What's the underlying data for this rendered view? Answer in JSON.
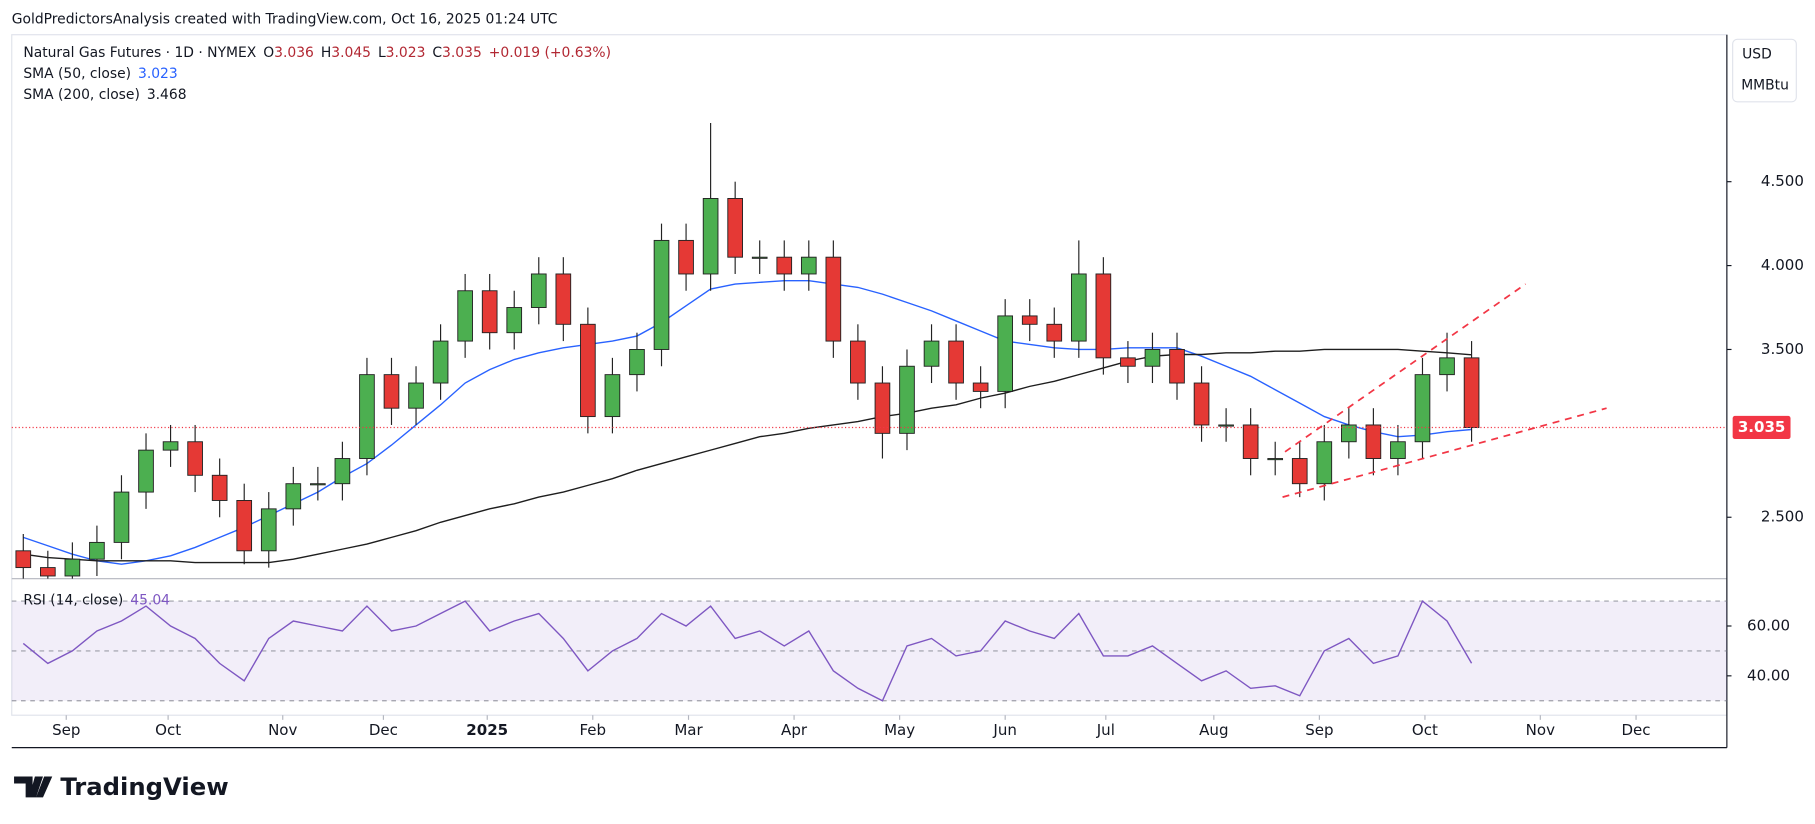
{
  "attribution": "GoldPredictorsAnalysis created with TradingView.com, Oct 16, 2025 01:24 UTC",
  "brand": "TradingView",
  "chart_data": {
    "type": "candlestick",
    "title": "Natural Gas Futures · 1D · NYMEX",
    "ohlc_header": {
      "o_label": "O",
      "o": "3.036",
      "h_label": "H",
      "h": "3.045",
      "l_label": "L",
      "l": "3.023",
      "c_label": "C",
      "c": "3.035",
      "change": "+0.019 (+0.63%)"
    },
    "currency": "USD",
    "unit": "MMBtu",
    "up_color": "#4caf50",
    "down_color": "#e53935",
    "open": [
      2.3,
      2.2,
      2.15,
      2.25,
      2.35,
      2.65,
      2.9,
      2.95,
      2.75,
      2.6,
      2.3,
      2.55,
      2.7,
      2.7,
      2.85,
      3.35,
      3.15,
      3.3,
      3.55,
      3.85,
      3.6,
      3.75,
      3.95,
      3.65,
      3.1,
      3.35,
      3.5,
      4.15,
      3.95,
      4.4,
      4.05,
      4.05,
      3.95,
      4.05,
      3.55,
      3.3,
      3.0,
      3.4,
      3.55,
      3.3,
      3.25,
      3.7,
      3.65,
      3.55,
      3.95,
      3.45,
      3.4,
      3.5,
      3.3,
      3.05,
      3.05,
      2.85,
      2.85,
      2.7,
      2.95,
      3.05,
      2.85,
      2.95,
      3.35,
      3.45
    ],
    "high": [
      2.4,
      2.3,
      2.35,
      2.45,
      2.75,
      3.0,
      3.05,
      3.05,
      2.85,
      2.7,
      2.65,
      2.8,
      2.8,
      2.95,
      3.45,
      3.45,
      3.4,
      3.65,
      3.95,
      3.95,
      3.85,
      4.05,
      4.05,
      3.75,
      3.45,
      3.6,
      4.25,
      4.25,
      4.85,
      4.5,
      4.15,
      4.15,
      4.15,
      4.15,
      3.65,
      3.4,
      3.5,
      3.65,
      3.65,
      3.4,
      3.8,
      3.8,
      3.75,
      4.15,
      4.05,
      3.55,
      3.6,
      3.6,
      3.4,
      3.15,
      3.15,
      2.95,
      2.95,
      3.05,
      3.15,
      3.15,
      3.05,
      3.45,
      3.6,
      3.55
    ],
    "low": [
      2.1,
      2.1,
      2.1,
      2.15,
      2.25,
      2.55,
      2.8,
      2.65,
      2.5,
      2.22,
      2.2,
      2.45,
      2.6,
      2.6,
      2.75,
      3.05,
      3.05,
      3.2,
      3.45,
      3.5,
      3.5,
      3.65,
      3.55,
      3.0,
      3.0,
      3.25,
      3.4,
      3.85,
      3.85,
      3.95,
      3.95,
      3.85,
      3.85,
      3.45,
      3.2,
      2.85,
      2.9,
      3.3,
      3.2,
      3.15,
      3.15,
      3.55,
      3.45,
      3.45,
      3.35,
      3.3,
      3.3,
      3.2,
      2.95,
      2.95,
      2.75,
      2.75,
      2.62,
      2.6,
      2.85,
      2.75,
      2.75,
      2.85,
      3.25,
      2.95
    ],
    "close": [
      2.2,
      2.15,
      2.25,
      2.35,
      2.65,
      2.9,
      2.95,
      2.75,
      2.6,
      2.3,
      2.55,
      2.7,
      2.7,
      2.85,
      3.35,
      3.15,
      3.3,
      3.55,
      3.85,
      3.6,
      3.75,
      3.95,
      3.65,
      3.1,
      3.35,
      3.5,
      4.15,
      3.95,
      4.4,
      4.05,
      4.05,
      3.95,
      4.05,
      3.55,
      3.3,
      3.0,
      3.4,
      3.55,
      3.3,
      3.25,
      3.7,
      3.65,
      3.55,
      3.95,
      3.45,
      3.4,
      3.5,
      3.3,
      3.05,
      3.05,
      2.85,
      2.85,
      2.7,
      2.95,
      3.05,
      2.85,
      2.95,
      3.35,
      3.45,
      3.035
    ],
    "series": [
      {
        "name": "SMA (50, close)",
        "last": "3.023",
        "color": "#2962ff",
        "values": [
          2.38,
          2.33,
          2.28,
          2.24,
          2.22,
          2.24,
          2.27,
          2.32,
          2.38,
          2.44,
          2.51,
          2.58,
          2.65,
          2.74,
          2.82,
          2.93,
          3.05,
          3.17,
          3.3,
          3.38,
          3.44,
          3.48,
          3.51,
          3.53,
          3.55,
          3.58,
          3.66,
          3.76,
          3.86,
          3.89,
          3.9,
          3.91,
          3.91,
          3.89,
          3.87,
          3.83,
          3.78,
          3.73,
          3.67,
          3.61,
          3.55,
          3.53,
          3.51,
          3.5,
          3.5,
          3.51,
          3.51,
          3.51,
          3.46,
          3.4,
          3.34,
          3.26,
          3.18,
          3.1,
          3.05,
          3.01,
          2.98,
          2.99,
          3.01,
          3.023
        ]
      },
      {
        "name": "SMA (200, close)",
        "last": "3.468",
        "color": "#1e1e1e",
        "values": [
          2.28,
          2.26,
          2.25,
          2.24,
          2.24,
          2.24,
          2.24,
          2.23,
          2.23,
          2.23,
          2.23,
          2.25,
          2.28,
          2.31,
          2.34,
          2.38,
          2.42,
          2.47,
          2.51,
          2.55,
          2.58,
          2.62,
          2.65,
          2.69,
          2.73,
          2.78,
          2.82,
          2.86,
          2.9,
          2.94,
          2.98,
          3.0,
          3.03,
          3.05,
          3.07,
          3.1,
          3.12,
          3.15,
          3.17,
          3.21,
          3.24,
          3.28,
          3.31,
          3.35,
          3.39,
          3.43,
          3.46,
          3.47,
          3.47,
          3.48,
          3.48,
          3.49,
          3.49,
          3.5,
          3.5,
          3.5,
          3.5,
          3.49,
          3.48,
          3.468
        ]
      }
    ],
    "last_price": {
      "value": 3.035,
      "label": "3.035",
      "color": "#f23645"
    },
    "trendlines": [
      {
        "x": [
          51.4,
          61.2
        ],
        "y": [
          2.89,
          3.89
        ],
        "color": "#f23645"
      },
      {
        "x": [
          51.3,
          64.5
        ],
        "y": [
          2.62,
          3.15
        ],
        "color": "#f23645"
      }
    ],
    "xlim": [
      -0.47,
      69.4
    ],
    "xticks": [
      {
        "value": 1.75,
        "label": "Sep"
      },
      {
        "value": 5.9,
        "label": "Oct"
      },
      {
        "value": 10.57,
        "label": "Nov"
      },
      {
        "value": 14.67,
        "label": "Dec"
      },
      {
        "value": 18.9,
        "label": "2025"
      },
      {
        "value": 23.2,
        "label": "Feb"
      },
      {
        "value": 27.1,
        "label": "Mar"
      },
      {
        "value": 31.4,
        "label": "Apr"
      },
      {
        "value": 35.7,
        "label": "May"
      },
      {
        "value": 40.0,
        "label": "Jun"
      },
      {
        "value": 44.1,
        "label": "Jul"
      },
      {
        "value": 48.5,
        "label": "Aug"
      },
      {
        "value": 52.8,
        "label": "Sep"
      },
      {
        "value": 57.1,
        "label": "Oct"
      },
      {
        "value": 61.8,
        "label": "Nov"
      },
      {
        "value": 65.7,
        "label": "Dec"
      }
    ],
    "ylim": [
      2.134,
      5.376
    ],
    "yticks": [
      {
        "value": 2.5,
        "label": "2.500"
      },
      {
        "value": 3.5,
        "label": "3.500"
      },
      {
        "value": 4.0,
        "label": "4.000"
      },
      {
        "value": 4.5,
        "label": "4.500"
      }
    ],
    "rsi": {
      "name": "RSI (14, close)",
      "last": "45.04",
      "color": "#7e57c2",
      "values": [
        53,
        45,
        50,
        58,
        62,
        68,
        60,
        55,
        45,
        38,
        55,
        62,
        60,
        58,
        68,
        58,
        60,
        65,
        70,
        58,
        62,
        65,
        55,
        42,
        50,
        55,
        65,
        60,
        68,
        55,
        58,
        52,
        58,
        42,
        35,
        30,
        52,
        55,
        48,
        50,
        62,
        58,
        55,
        65,
        48,
        48,
        52,
        45,
        38,
        42,
        35,
        36,
        32,
        50,
        55,
        45,
        48,
        70,
        62,
        45.04
      ],
      "ylim": [
        24.2,
        79
      ],
      "yticks": [
        {
          "value": 40,
          "label": "40.00"
        },
        {
          "value": 60,
          "label": "60.00"
        }
      ],
      "levels": [
        30,
        50,
        70
      ]
    }
  }
}
